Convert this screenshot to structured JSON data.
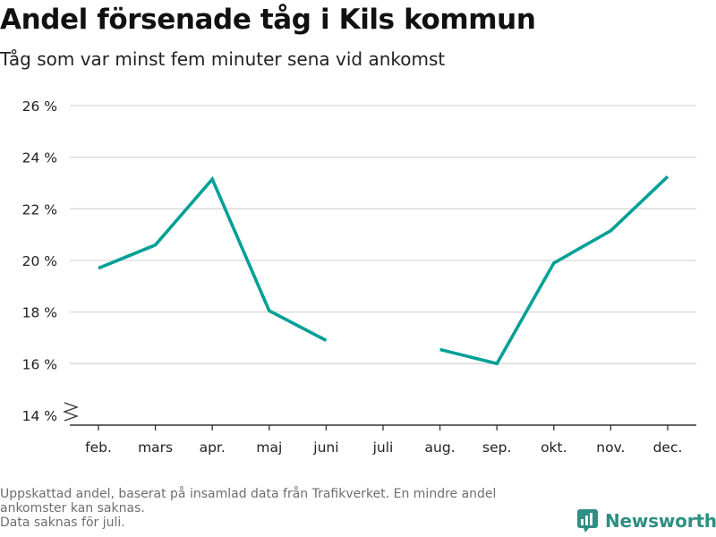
{
  "header": {
    "title": "Andel försenade tåg i Kils kommun",
    "subtitle": "Tåg som var minst fem minuter sena vid ankomst"
  },
  "footer": {
    "source_lines": [
      "Uppskattad andel, baserat på insamlad data från Trafikverket. En mindre andel",
      "ankomster kan saknas.",
      "Data saknas för juli."
    ],
    "brand": "Newsworthy"
  },
  "colors": {
    "line": "#00a096",
    "grid": "#d9d9d9",
    "axis": "#333333",
    "brand": "#2f8f83"
  },
  "icons": {
    "axis_break": "axis-break-icon",
    "logo": "newsworthy-logo-icon"
  },
  "chart_data": {
    "type": "line",
    "title": "Andel försenade tåg i Kils kommun",
    "subtitle": "Tåg som var minst fem minuter sena vid ankomst",
    "categories": [
      "feb.",
      "mars",
      "apr.",
      "maj",
      "juni",
      "juli",
      "aug.",
      "sep.",
      "okt.",
      "nov.",
      "dec."
    ],
    "series": [
      {
        "values": [
          19.7,
          20.6,
          23.15,
          18.05,
          16.9,
          null,
          16.55,
          16.0,
          19.9,
          21.15,
          23.25
        ]
      }
    ],
    "yticks": [
      14,
      16,
      18,
      20,
      22,
      24,
      26
    ],
    "ytick_labels": [
      "14 %",
      "16 %",
      "18 %",
      "20 %",
      "22 %",
      "24 %",
      "26 %"
    ],
    "ylim": [
      14,
      26
    ],
    "grid": true,
    "axis_break": true,
    "legend": "none"
  }
}
